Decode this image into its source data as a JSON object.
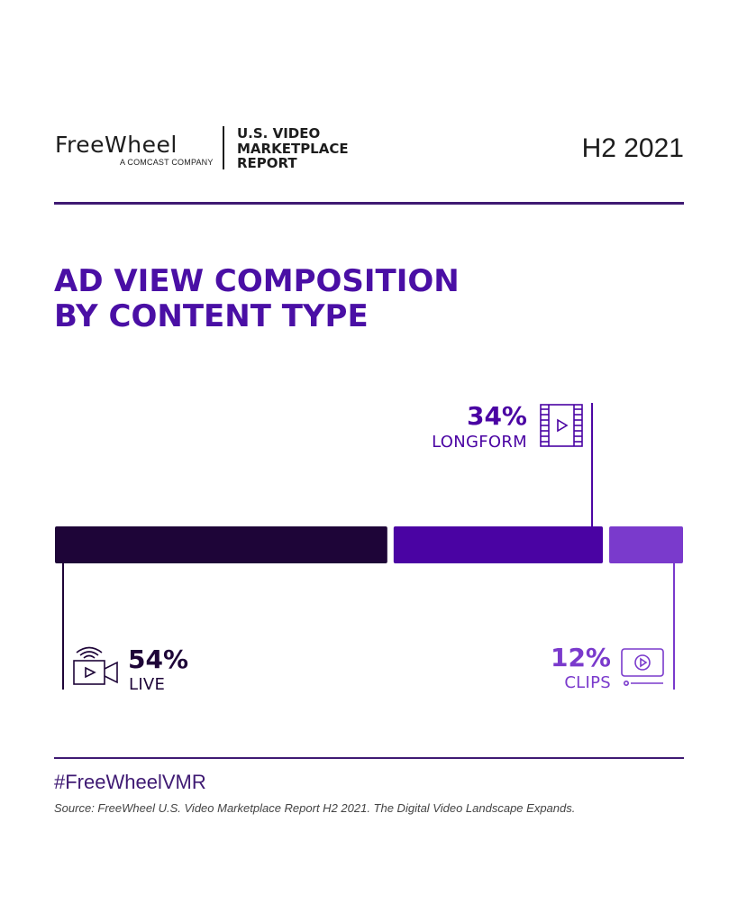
{
  "header": {
    "logo_wordmark": "FreeWheel",
    "logo_subtitle": "A COMCAST COMPANY",
    "report_title": "U.S. VIDEO\nMARKETPLACE\nREPORT",
    "period": "H2 2021"
  },
  "headline": "AD VIEW COMPOSITION\nBY CONTENT TYPE",
  "chart_data": {
    "type": "bar",
    "orientation": "horizontal-stacked",
    "categories": [
      "LIVE",
      "LONGFORM",
      "CLIPS"
    ],
    "values": [
      54,
      34,
      12
    ],
    "value_labels": [
      "54%",
      "34%",
      "12%"
    ],
    "unit": "%",
    "colors": [
      "#1e0538",
      "#4a03a3",
      "#7a3acc"
    ],
    "label_colors": [
      "#1e0538",
      "#4a03a3",
      "#7a3acc"
    ],
    "icons": [
      "video-camera-broadcast-icon",
      "film-strip-icon",
      "video-player-icon"
    ],
    "title": "AD VIEW COMPOSITION BY CONTENT TYPE"
  },
  "footer": {
    "hashtag": "#FreeWheelVMR",
    "source": "Source: FreeWheel U.S. Video Marketplace Report H2 2021. The Digital Video Landscape Expands."
  }
}
